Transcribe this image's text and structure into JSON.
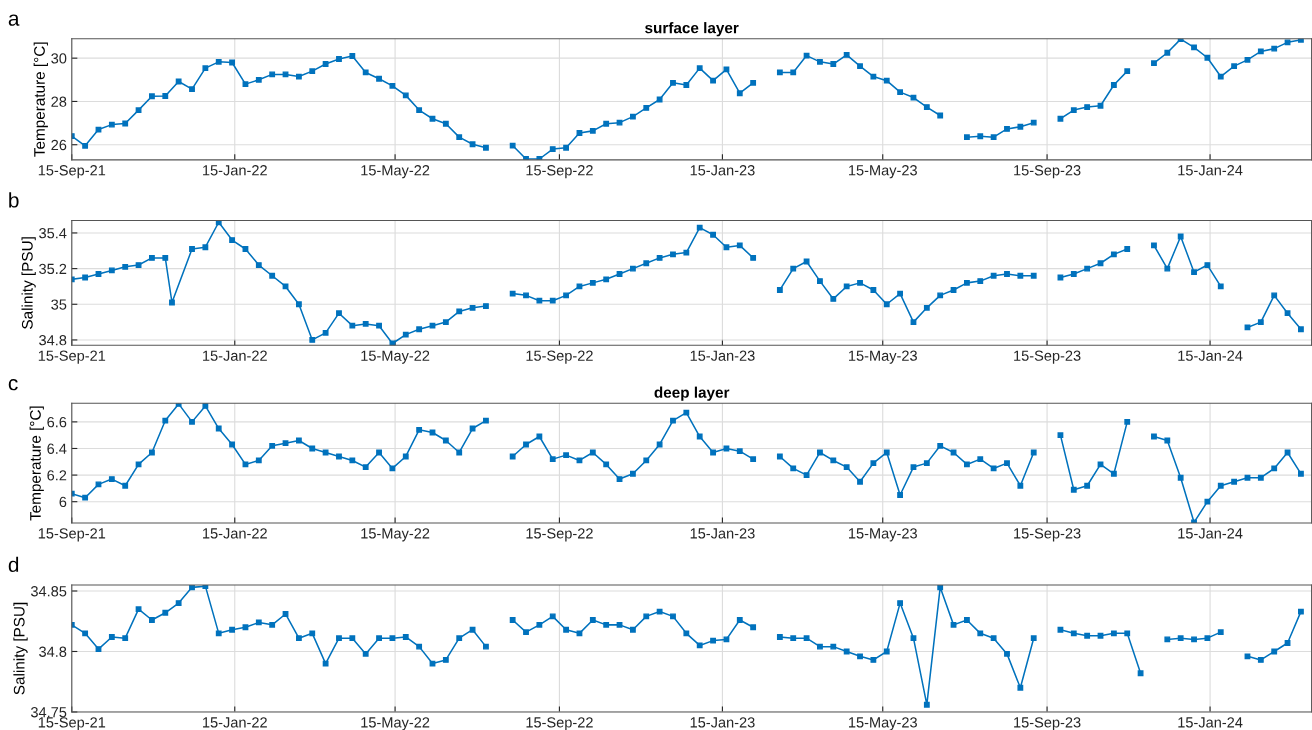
{
  "chart_data": [
    {
      "type": "line",
      "title": "surface layer",
      "ylabel": "Temperature [°C]",
      "annotations": [
        "a"
      ],
      "marker": "square",
      "grid": true,
      "xlim": [
        "2021-09-15",
        "2024-03-31"
      ],
      "ylim": [
        25.3,
        30.9
      ],
      "yticks": [
        26,
        28,
        30
      ],
      "xticks": [
        {
          "value": "2021-09-15",
          "label": "15-Sep-21"
        },
        {
          "value": "2022-01-15",
          "label": "15-Jan-22"
        },
        {
          "value": "2022-05-15",
          "label": "15-May-22"
        },
        {
          "value": "2022-09-15",
          "label": "15-Sep-22"
        },
        {
          "value": "2023-01-15",
          "label": "15-Jan-23"
        },
        {
          "value": "2023-05-15",
          "label": "15-May-23"
        },
        {
          "value": "2023-09-15",
          "label": "15-Sep-23"
        },
        {
          "value": "2024-01-15",
          "label": "15-Jan-24"
        }
      ],
      "x": [
        "2021-09-15",
        "2021-09-25",
        "2021-10-05",
        "2021-10-15",
        "2021-10-25",
        "2021-11-04",
        "2021-11-14",
        "2021-11-24",
        "2021-12-04",
        "2021-12-14",
        "2021-12-24",
        "2022-01-03",
        "2022-01-13",
        "2022-01-23",
        "2022-02-02",
        "2022-02-12",
        "2022-02-22",
        "2022-03-04",
        "2022-03-14",
        "2022-03-24",
        "2022-04-03",
        "2022-04-13",
        "2022-04-23",
        "2022-05-03",
        "2022-05-13",
        "2022-05-23",
        "2022-06-02",
        "2022-06-12",
        "2022-06-22",
        "2022-07-02",
        "2022-07-12",
        "2022-07-22",
        "2022-08-01",
        "2022-08-11",
        "2022-08-21",
        "2022-08-31",
        "2022-09-10",
        "2022-09-20",
        "2022-09-30",
        "2022-10-10",
        "2022-10-20",
        "2022-10-30",
        "2022-11-09",
        "2022-11-19",
        "2022-11-29",
        "2022-12-09",
        "2022-12-19",
        "2022-12-29",
        "2023-01-08",
        "2023-01-18",
        "2023-01-28",
        "2023-02-07",
        "2023-02-17",
        "2023-02-27",
        "2023-03-09",
        "2023-03-19",
        "2023-03-29",
        "2023-04-08",
        "2023-04-18",
        "2023-04-28",
        "2023-05-08",
        "2023-05-18",
        "2023-05-28",
        "2023-06-07",
        "2023-06-17",
        "2023-06-27",
        "2023-07-07",
        "2023-07-17",
        "2023-07-27",
        "2023-08-06",
        "2023-08-16",
        "2023-08-26",
        "2023-09-05",
        "2023-09-15",
        "2023-09-25",
        "2023-10-05",
        "2023-10-15",
        "2023-10-25",
        "2023-11-04",
        "2023-11-14",
        "2023-11-24",
        "2023-12-04",
        "2023-12-14",
        "2023-12-24",
        "2024-01-03",
        "2024-01-13",
        "2024-01-23",
        "2024-02-02",
        "2024-02-12",
        "2024-02-22",
        "2024-03-03",
        "2024-03-13",
        "2024-03-23"
      ],
      "series": [
        {
          "color": "#0072bd",
          "values": [
            26.4,
            25.95,
            26.7,
            26.93,
            26.98,
            27.6,
            28.24,
            28.25,
            28.92,
            28.57,
            29.54,
            29.83,
            29.8,
            28.8,
            29.0,
            29.25,
            29.25,
            29.15,
            29.4,
            29.73,
            29.96,
            30.1,
            29.34,
            29.05,
            28.72,
            28.28,
            27.6,
            27.2,
            26.97,
            26.35,
            26.02,
            25.86,
            null,
            25.96,
            25.34,
            25.34,
            25.8,
            25.86,
            26.54,
            26.64,
            26.97,
            27.02,
            27.3,
            27.7,
            28.09,
            28.86,
            28.76,
            29.54,
            28.96,
            29.48,
            28.38,
            28.86,
            null,
            29.34,
            29.34,
            30.12,
            29.83,
            29.73,
            30.15,
            29.63,
            29.15,
            28.96,
            28.43,
            28.18,
            27.74,
            27.35,
            null,
            26.35,
            26.39,
            26.35,
            26.73,
            26.83,
            27.02,
            null,
            27.2,
            27.6,
            27.74,
            27.8,
            28.76,
            29.4,
            null,
            29.77,
            30.25,
            30.88,
            30.5,
            30.02,
            29.15,
            29.63,
            29.92,
            30.31,
            30.44,
            30.73,
            30.85
          ]
        }
      ]
    },
    {
      "type": "line",
      "ylabel": "Salinity [PSU]",
      "annotations": [
        "b"
      ],
      "marker": "square",
      "grid": true,
      "xlim": [
        "2021-09-15",
        "2024-03-31"
      ],
      "ylim": [
        34.77,
        35.47
      ],
      "yticks": [
        34.8,
        35,
        35.2,
        35.4
      ],
      "xticks": [
        {
          "value": "2021-09-15",
          "label": "15-Sep-21"
        },
        {
          "value": "2022-01-15",
          "label": "15-Jan-22"
        },
        {
          "value": "2022-05-15",
          "label": "15-May-22"
        },
        {
          "value": "2022-09-15",
          "label": "15-Sep-22"
        },
        {
          "value": "2023-01-15",
          "label": "15-Jan-23"
        },
        {
          "value": "2023-05-15",
          "label": "15-May-23"
        },
        {
          "value": "2023-09-15",
          "label": "15-Sep-23"
        },
        {
          "value": "2024-01-15",
          "label": "15-Jan-24"
        }
      ],
      "x": [
        "2021-09-15",
        "2021-09-25",
        "2021-10-05",
        "2021-10-15",
        "2021-10-25",
        "2021-11-04",
        "2021-11-14",
        "2021-11-24",
        "2021-11-29",
        "2021-12-14",
        "2021-12-24",
        "2022-01-03",
        "2022-01-13",
        "2022-01-23",
        "2022-02-02",
        "2022-02-12",
        "2022-02-22",
        "2022-03-04",
        "2022-03-14",
        "2022-03-24",
        "2022-04-03",
        "2022-04-13",
        "2022-04-23",
        "2022-05-03",
        "2022-05-13",
        "2022-05-23",
        "2022-06-02",
        "2022-06-12",
        "2022-06-22",
        "2022-07-02",
        "2022-07-12",
        "2022-07-22",
        "2022-08-01",
        "2022-08-11",
        "2022-08-21",
        "2022-08-31",
        "2022-09-10",
        "2022-09-20",
        "2022-09-30",
        "2022-10-10",
        "2022-10-20",
        "2022-10-30",
        "2022-11-09",
        "2022-11-19",
        "2022-11-29",
        "2022-12-09",
        "2022-12-19",
        "2022-12-29",
        "2023-01-08",
        "2023-01-18",
        "2023-01-28",
        "2023-02-07",
        "2023-02-17",
        "2023-02-27",
        "2023-03-09",
        "2023-03-19",
        "2023-03-29",
        "2023-04-08",
        "2023-04-18",
        "2023-04-28",
        "2023-05-08",
        "2023-05-18",
        "2023-05-28",
        "2023-06-07",
        "2023-06-17",
        "2023-06-27",
        "2023-07-07",
        "2023-07-17",
        "2023-07-27",
        "2023-08-06",
        "2023-08-16",
        "2023-08-26",
        "2023-09-05",
        "2023-09-15",
        "2023-09-25",
        "2023-10-05",
        "2023-10-15",
        "2023-10-25",
        "2023-11-04",
        "2023-11-14",
        "2023-11-24",
        "2023-12-04",
        "2023-12-14",
        "2023-12-24",
        "2024-01-03",
        "2024-01-13",
        "2024-01-23",
        "2024-02-02",
        "2024-02-12",
        "2024-02-22",
        "2024-03-03",
        "2024-03-13",
        "2024-03-23"
      ],
      "series": [
        {
          "color": "#0072bd",
          "values": [
            35.14,
            35.15,
            35.17,
            35.19,
            35.21,
            35.22,
            35.26,
            35.26,
            35.01,
            35.31,
            35.32,
            35.46,
            35.36,
            35.31,
            35.22,
            35.16,
            35.1,
            35.0,
            34.8,
            34.84,
            34.95,
            34.88,
            34.89,
            34.88,
            34.78,
            34.83,
            34.86,
            34.88,
            34.9,
            34.96,
            34.98,
            34.99,
            null,
            35.06,
            35.05,
            35.02,
            35.02,
            35.05,
            35.1,
            35.12,
            35.14,
            35.17,
            35.2,
            35.23,
            35.26,
            35.28,
            35.29,
            35.43,
            35.39,
            35.32,
            35.33,
            35.26,
            null,
            35.08,
            35.2,
            35.24,
            35.13,
            35.03,
            35.1,
            35.12,
            35.08,
            35.0,
            35.06,
            34.9,
            34.98,
            35.05,
            35.08,
            35.12,
            35.13,
            35.16,
            35.17,
            35.16,
            35.16,
            null,
            35.15,
            35.17,
            35.2,
            35.23,
            35.28,
            35.31,
            null,
            35.33,
            35.2,
            35.38,
            35.18,
            35.22,
            35.1,
            null,
            34.87,
            34.9,
            35.05,
            34.95,
            34.86
          ]
        }
      ]
    },
    {
      "type": "line",
      "title": "deep layer",
      "ylabel": "Temperature [°C]",
      "annotations": [
        "c"
      ],
      "marker": "square",
      "grid": true,
      "xlim": [
        "2021-09-15",
        "2024-03-31"
      ],
      "ylim": [
        5.84,
        6.74
      ],
      "yticks": [
        6,
        6.2,
        6.4,
        6.6
      ],
      "xticks": [
        {
          "value": "2021-09-15",
          "label": "15-Sep-21"
        },
        {
          "value": "2022-01-15",
          "label": "15-Jan-22"
        },
        {
          "value": "2022-05-15",
          "label": "15-May-22"
        },
        {
          "value": "2022-09-15",
          "label": "15-Sep-22"
        },
        {
          "value": "2023-01-15",
          "label": "15-Jan-23"
        },
        {
          "value": "2023-05-15",
          "label": "15-May-23"
        },
        {
          "value": "2023-09-15",
          "label": "15-Sep-23"
        },
        {
          "value": "2024-01-15",
          "label": "15-Jan-24"
        }
      ],
      "x": [
        "2021-09-15",
        "2021-09-25",
        "2021-10-05",
        "2021-10-15",
        "2021-10-25",
        "2021-11-04",
        "2021-11-14",
        "2021-11-24",
        "2021-12-04",
        "2021-12-14",
        "2021-12-24",
        "2022-01-03",
        "2022-01-13",
        "2022-01-23",
        "2022-02-02",
        "2022-02-12",
        "2022-02-22",
        "2022-03-04",
        "2022-03-14",
        "2022-03-24",
        "2022-04-03",
        "2022-04-13",
        "2022-04-23",
        "2022-05-03",
        "2022-05-13",
        "2022-05-23",
        "2022-06-02",
        "2022-06-12",
        "2022-06-22",
        "2022-07-02",
        "2022-07-12",
        "2022-07-22",
        "2022-08-01",
        "2022-08-11",
        "2022-08-21",
        "2022-08-31",
        "2022-09-10",
        "2022-09-20",
        "2022-09-30",
        "2022-10-10",
        "2022-10-20",
        "2022-10-30",
        "2022-11-09",
        "2022-11-19",
        "2022-11-29",
        "2022-12-09",
        "2022-12-19",
        "2022-12-29",
        "2023-01-08",
        "2023-01-18",
        "2023-01-28",
        "2023-02-07",
        "2023-02-17",
        "2023-02-27",
        "2023-03-09",
        "2023-03-19",
        "2023-03-29",
        "2023-04-08",
        "2023-04-18",
        "2023-04-28",
        "2023-05-08",
        "2023-05-18",
        "2023-05-28",
        "2023-06-07",
        "2023-06-17",
        "2023-06-27",
        "2023-07-07",
        "2023-07-17",
        "2023-07-27",
        "2023-08-06",
        "2023-08-16",
        "2023-08-26",
        "2023-09-05",
        "2023-09-15",
        "2023-09-25",
        "2023-10-05",
        "2023-10-15",
        "2023-10-25",
        "2023-11-04",
        "2023-11-14",
        "2023-11-24",
        "2023-12-04",
        "2023-12-14",
        "2023-12-24",
        "2024-01-03",
        "2024-01-13",
        "2024-01-23",
        "2024-02-02",
        "2024-02-12",
        "2024-02-22",
        "2024-03-03",
        "2024-03-13",
        "2024-03-23"
      ],
      "series": [
        {
          "color": "#0072bd",
          "values": [
            6.06,
            6.03,
            6.13,
            6.17,
            6.12,
            6.28,
            6.37,
            6.61,
            6.735,
            6.6,
            6.72,
            6.55,
            6.43,
            6.28,
            6.31,
            6.42,
            6.44,
            6.46,
            6.4,
            6.37,
            6.34,
            6.31,
            6.26,
            6.37,
            6.25,
            6.34,
            6.54,
            6.52,
            6.46,
            6.37,
            6.55,
            6.61,
            null,
            6.34,
            6.43,
            6.49,
            6.32,
            6.35,
            6.31,
            6.37,
            6.28,
            6.17,
            6.21,
            6.31,
            6.43,
            6.61,
            6.67,
            6.49,
            6.37,
            6.4,
            6.38,
            6.32,
            null,
            6.34,
            6.25,
            6.2,
            6.37,
            6.31,
            6.26,
            6.15,
            6.29,
            6.37,
            6.05,
            6.26,
            6.29,
            6.42,
            6.37,
            6.28,
            6.32,
            6.25,
            6.29,
            6.12,
            6.37,
            null,
            6.5,
            6.09,
            6.12,
            6.28,
            6.21,
            6.6,
            null,
            6.49,
            6.46,
            6.18,
            5.845,
            6.0,
            6.12,
            6.15,
            6.18,
            6.18,
            6.25,
            6.37,
            6.21
          ]
        }
      ]
    },
    {
      "type": "line",
      "ylabel": "Salinity [PSU]",
      "annotations": [
        "d"
      ],
      "marker": "square",
      "grid": true,
      "xlim": [
        "2021-09-15",
        "2024-03-31"
      ],
      "ylim": [
        34.75,
        34.855
      ],
      "yticks": [
        34.75,
        34.8,
        34.85
      ],
      "xticks": [
        {
          "value": "2021-09-15",
          "label": "15-Sep-21"
        },
        {
          "value": "2022-01-15",
          "label": "15-Jan-22"
        },
        {
          "value": "2022-05-15",
          "label": "15-May-22"
        },
        {
          "value": "2022-09-15",
          "label": "15-Sep-22"
        },
        {
          "value": "2023-01-15",
          "label": "15-Jan-23"
        },
        {
          "value": "2023-05-15",
          "label": "15-May-23"
        },
        {
          "value": "2023-09-15",
          "label": "15-Sep-23"
        },
        {
          "value": "2024-01-15",
          "label": "15-Jan-24"
        }
      ],
      "x": [
        "2021-09-15",
        "2021-09-25",
        "2021-10-05",
        "2021-10-15",
        "2021-10-25",
        "2021-11-04",
        "2021-11-14",
        "2021-11-24",
        "2021-12-04",
        "2021-12-14",
        "2021-12-24",
        "2022-01-03",
        "2022-01-13",
        "2022-01-23",
        "2022-02-02",
        "2022-02-12",
        "2022-02-22",
        "2022-03-04",
        "2022-03-14",
        "2022-03-24",
        "2022-04-03",
        "2022-04-13",
        "2022-04-23",
        "2022-05-03",
        "2022-05-13",
        "2022-05-23",
        "2022-06-02",
        "2022-06-12",
        "2022-06-22",
        "2022-07-02",
        "2022-07-12",
        "2022-07-22",
        "2022-08-01",
        "2022-08-11",
        "2022-08-21",
        "2022-08-31",
        "2022-09-10",
        "2022-09-20",
        "2022-09-30",
        "2022-10-10",
        "2022-10-20",
        "2022-10-30",
        "2022-11-09",
        "2022-11-19",
        "2022-11-29",
        "2022-12-09",
        "2022-12-19",
        "2022-12-29",
        "2023-01-08",
        "2023-01-18",
        "2023-01-28",
        "2023-02-07",
        "2023-02-17",
        "2023-02-27",
        "2023-03-09",
        "2023-03-19",
        "2023-03-29",
        "2023-04-08",
        "2023-04-18",
        "2023-04-28",
        "2023-05-08",
        "2023-05-18",
        "2023-05-28",
        "2023-06-07",
        "2023-06-17",
        "2023-06-27",
        "2023-07-07",
        "2023-07-17",
        "2023-07-27",
        "2023-08-06",
        "2023-08-16",
        "2023-08-26",
        "2023-09-05",
        "2023-09-15",
        "2023-09-25",
        "2023-10-05",
        "2023-10-15",
        "2023-10-25",
        "2023-11-04",
        "2023-11-14",
        "2023-11-24",
        "2023-12-04",
        "2023-12-14",
        "2023-12-24",
        "2024-01-03",
        "2024-01-13",
        "2024-01-23",
        "2024-02-02",
        "2024-02-12",
        "2024-02-22",
        "2024-03-03",
        "2024-03-13",
        "2024-03-23"
      ],
      "series": [
        {
          "color": "#0072bd",
          "values": [
            34.822,
            34.815,
            34.802,
            34.812,
            34.811,
            34.835,
            34.826,
            34.832,
            34.84,
            34.853,
            34.854,
            34.815,
            34.818,
            34.82,
            34.824,
            34.822,
            34.831,
            34.811,
            34.815,
            34.79,
            34.811,
            34.811,
            34.798,
            34.811,
            34.811,
            34.812,
            34.804,
            34.79,
            34.793,
            34.811,
            34.818,
            34.804,
            null,
            34.826,
            34.816,
            34.822,
            34.829,
            34.818,
            34.815,
            34.826,
            34.822,
            34.822,
            34.818,
            34.829,
            34.833,
            34.829,
            34.815,
            34.805,
            34.809,
            34.81,
            34.826,
            34.82,
            null,
            34.812,
            34.811,
            34.811,
            34.804,
            34.804,
            34.8,
            34.796,
            34.793,
            34.8,
            34.84,
            34.811,
            34.756,
            34.853,
            34.822,
            34.826,
            34.815,
            34.811,
            34.798,
            34.77,
            34.811,
            null,
            34.818,
            34.815,
            34.813,
            34.813,
            34.815,
            34.815,
            34.782,
            null,
            34.81,
            34.811,
            34.81,
            34.811,
            34.816,
            null,
            34.796,
            34.793,
            34.8,
            34.807,
            34.833
          ]
        }
      ]
    }
  ]
}
